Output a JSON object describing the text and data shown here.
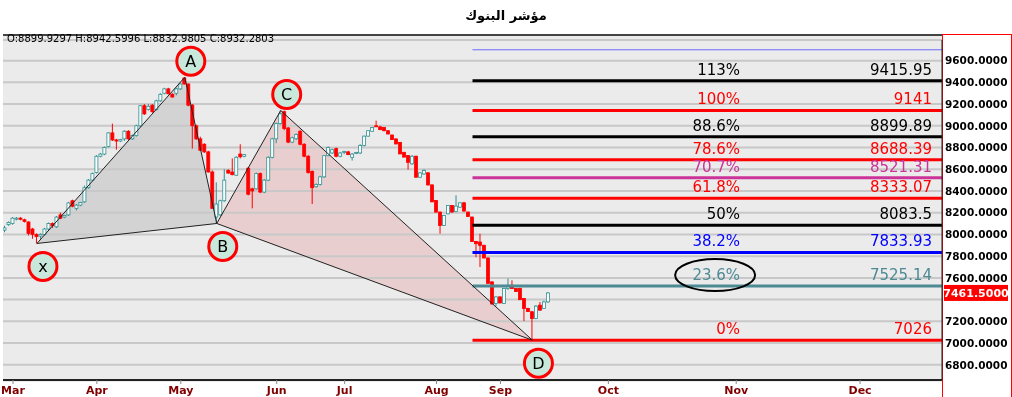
{
  "chart_data": {
    "type": "candlestick",
    "title": "مؤشر البنوك",
    "categories": [
      null,
      null,
      "Mar",
      null,
      null,
      null,
      null,
      null,
      null,
      null,
      null,
      null,
      null,
      null,
      null,
      null,
      null,
      null,
      null,
      null,
      null,
      null,
      null,
      "Apr",
      null,
      null,
      null,
      null,
      null,
      null,
      null,
      null,
      null,
      null,
      null,
      null,
      null,
      null,
      null,
      null,
      null,
      null,
      null,
      null,
      "May",
      null,
      null,
      null,
      null,
      null,
      null,
      null,
      null,
      null,
      null,
      null,
      null,
      null,
      null,
      null,
      null,
      null,
      null,
      null,
      null,
      null,
      null,
      null,
      "Jun",
      null,
      null,
      null,
      null,
      null,
      null,
      null,
      null,
      null,
      null,
      null,
      null,
      null,
      null,
      null,
      null,
      "Jul",
      null,
      null,
      null,
      null,
      null,
      null,
      null,
      null,
      null,
      null,
      null,
      null,
      null,
      null,
      null,
      null,
      null,
      null,
      null,
      null,
      null,
      null,
      "Aug",
      null,
      null,
      null,
      null,
      null,
      null,
      null,
      null,
      null,
      null,
      null,
      null,
      null,
      null,
      null,
      "Sep",
      null,
      null,
      null,
      null,
      null,
      null,
      null,
      null,
      null,
      null,
      null,
      null,
      null,
      null,
      null,
      null,
      null,
      null,
      null,
      null,
      null,
      null,
      null,
      null,
      null,
      null,
      "Oct",
      null,
      null,
      null,
      null,
      null,
      null,
      null,
      null,
      null,
      null,
      null,
      null,
      null,
      null,
      null,
      null,
      null,
      null,
      null,
      null,
      null,
      null,
      null,
      null,
      null,
      null,
      null,
      null,
      null,
      null,
      null,
      "Nov",
      null,
      null,
      null,
      null,
      null,
      null,
      null,
      null,
      null,
      null,
      null,
      null,
      null,
      null,
      null,
      null,
      null,
      null,
      null,
      null,
      null,
      null,
      null,
      null,
      null,
      null,
      null,
      null,
      null,
      null,
      "Dec",
      null,
      null,
      null,
      null,
      null,
      null,
      null,
      null,
      null,
      null,
      null,
      null,
      null,
      null,
      null,
      null,
      null,
      null,
      null,
      null
    ],
    "ohlc": [
      [
        8040,
        8080,
        8020,
        8060
      ],
      [
        8090,
        8120,
        8080,
        8110
      ],
      [
        8100,
        8160,
        8090,
        8150
      ],
      [
        8140,
        8160,
        8130,
        8150
      ],
      [
        8150,
        8160,
        8130,
        8140
      ],
      [
        8135,
        8145,
        8110,
        8120
      ],
      [
        8115,
        8120,
        7990,
        8010
      ],
      [
        8050,
        8060,
        7960,
        8000
      ],
      [
        8000,
        8010,
        7917,
        7980
      ],
      [
        7985,
        8010,
        7960,
        8000
      ],
      [
        8000,
        8060,
        7990,
        8050
      ],
      [
        8050,
        8110,
        8040,
        8100
      ],
      [
        8100,
        8110,
        8060,
        8080
      ],
      [
        8070,
        8170,
        8060,
        8160
      ],
      [
        8180,
        8200,
        8140,
        8150
      ],
      [
        8160,
        8180,
        8150,
        8175
      ],
      [
        8180,
        8300,
        8170,
        8290
      ],
      [
        8310,
        8320,
        8250,
        8260
      ],
      [
        8240,
        8280,
        8220,
        8270
      ],
      [
        8270,
        8300,
        8260,
        8295
      ],
      [
        8300,
        8450,
        8290,
        8430
      ],
      [
        8430,
        8510,
        8420,
        8500
      ],
      [
        8500,
        8570,
        8490,
        8560
      ],
      [
        8570,
        8730,
        8560,
        8720
      ],
      [
        8720,
        8750,
        8710,
        8740
      ],
      [
        8740,
        8810,
        8730,
        8800
      ],
      [
        8810,
        8940,
        8800,
        8935
      ],
      [
        8935,
        9020,
        8860,
        8870
      ],
      [
        8870,
        8880,
        8780,
        8860
      ],
      [
        8860,
        8880,
        8850,
        8875
      ],
      [
        8880,
        8960,
        8860,
        8950
      ],
      [
        8950,
        8960,
        8870,
        8880
      ],
      [
        8880,
        8920,
        8870,
        8910
      ],
      [
        8910,
        9010,
        8900,
        9000
      ],
      [
        9000,
        9190,
        8990,
        9185
      ],
      [
        9185,
        9200,
        9100,
        9110
      ],
      [
        9150,
        9200,
        9140,
        9180
      ],
      [
        9190,
        9200,
        9120,
        9130
      ],
      [
        9150,
        9240,
        9140,
        9230
      ],
      [
        9230,
        9300,
        9220,
        9290
      ],
      [
        9300,
        9350,
        9290,
        9340
      ],
      [
        9340,
        9350,
        9290,
        9295
      ],
      [
        9290,
        9300,
        9260,
        9265
      ],
      [
        9300,
        9350,
        9280,
        9340
      ],
      [
        9340,
        9390,
        9330,
        9385
      ],
      [
        9440,
        9447,
        9380,
        9385
      ],
      [
        9385,
        9390,
        9180,
        9190
      ],
      [
        9190,
        9200,
        8790,
        9000
      ],
      [
        9000,
        9010,
        8870,
        8880
      ],
      [
        8880,
        8900,
        8770,
        8775
      ],
      [
        8830,
        8840,
        8750,
        8760
      ],
      [
        8760,
        8770,
        8570,
        8575
      ],
      [
        8575,
        8590,
        8240,
        8240
      ],
      [
        8160,
        8480,
        8101,
        8280
      ],
      [
        8180,
        8320,
        8170,
        8310
      ],
      [
        8310,
        8600,
        8300,
        8500
      ],
      [
        8590,
        8600,
        8560,
        8565
      ],
      [
        8575,
        8700,
        8545,
        8550
      ],
      [
        8545,
        8720,
        8540,
        8710
      ],
      [
        8740,
        8830,
        8700,
        8715
      ],
      [
        8720,
        8740,
        8710,
        8735
      ],
      [
        8610,
        8620,
        8360,
        8370
      ],
      [
        8420,
        8430,
        8240,
        8400
      ],
      [
        8420,
        8570,
        8410,
        8560
      ],
      [
        8560,
        8570,
        8380,
        8390
      ],
      [
        8390,
        8510,
        8380,
        8500
      ],
      [
        8500,
        8720,
        8490,
        8710
      ],
      [
        8710,
        8890,
        8700,
        8880
      ],
      [
        8880,
        9030,
        8840,
        9020
      ],
      [
        9020,
        9141,
        9010,
        9110
      ],
      [
        9130,
        9141,
        8960,
        8975
      ],
      [
        8980,
        8990,
        8840,
        8850
      ],
      [
        8850,
        8900,
        8840,
        8890
      ],
      [
        8880,
        8930,
        8870,
        8920
      ],
      [
        8950,
        8960,
        8820,
        8830
      ],
      [
        8830,
        8840,
        8710,
        8720
      ],
      [
        8720,
        8730,
        8560,
        8570
      ],
      [
        8580,
        8590,
        8280,
        8430
      ],
      [
        8440,
        8470,
        8430,
        8460
      ],
      [
        8460,
        8540,
        8450,
        8530
      ],
      [
        8530,
        8730,
        8520,
        8725
      ],
      [
        8725,
        8810,
        8720,
        8800
      ],
      [
        8750,
        8790,
        8740,
        8780
      ],
      [
        8790,
        8800,
        8710,
        8720
      ],
      [
        8720,
        8760,
        8710,
        8750
      ],
      [
        8760,
        8770,
        8740,
        8765
      ],
      [
        8760,
        8770,
        8730,
        8735
      ],
      [
        8710,
        8750,
        8680,
        8740
      ],
      [
        8745,
        8760,
        8740,
        8755
      ],
      [
        8750,
        8830,
        8740,
        8820
      ],
      [
        8820,
        8910,
        8810,
        8905
      ],
      [
        8905,
        8960,
        8900,
        8955
      ],
      [
        8950,
        8990,
        8945,
        8985
      ],
      [
        9000,
        9047,
        8990,
        8995
      ],
      [
        8990,
        9000,
        8960,
        8965
      ],
      [
        8985,
        8990,
        8950,
        8955
      ],
      [
        8955,
        8960,
        8920,
        8925
      ],
      [
        8915,
        8920,
        8870,
        8873
      ],
      [
        8879,
        8885,
        8830,
        8833
      ],
      [
        8848,
        8850,
        8740,
        8741
      ],
      [
        8756,
        8760,
        8710,
        8712
      ],
      [
        8726,
        8730,
        8597,
        8664
      ],
      [
        8650,
        8730,
        8640,
        8720
      ],
      [
        8720,
        8725,
        8520,
        8527
      ],
      [
        8527,
        8575,
        8520,
        8567
      ],
      [
        8557,
        8600,
        8550,
        8588
      ],
      [
        8567,
        8575,
        8450,
        8456
      ],
      [
        8456,
        8460,
        8297,
        8300
      ],
      [
        8313,
        8315,
        8200,
        8206
      ],
      [
        8206,
        8210,
        8007,
        8083
      ],
      [
        8083,
        8180,
        8080,
        8175
      ],
      [
        8190,
        8270,
        8185,
        8267
      ],
      [
        8267,
        8270,
        8200,
        8206
      ],
      [
        8212,
        8360,
        8205,
        8261
      ],
      [
        8251,
        8295,
        8245,
        8291
      ],
      [
        8291,
        8300,
        8210,
        8215
      ],
      [
        8206,
        8210,
        8160,
        8165
      ],
      [
        8160,
        8165,
        7930,
        7935
      ],
      [
        7936,
        7940,
        7790,
        7915
      ],
      [
        7930,
        8007,
        7700,
        7900
      ],
      [
        7900,
        7905,
        7780,
        7783
      ],
      [
        7783,
        7790,
        7548,
        7550
      ],
      [
        7563,
        7570,
        7355,
        7360
      ],
      [
        7364,
        7430,
        7340,
        7425
      ],
      [
        7425,
        7430,
        7364,
        7370
      ],
      [
        7364,
        7510,
        7360,
        7502
      ],
      [
        7502,
        7594,
        7490,
        7532
      ],
      [
        7532,
        7578,
        7500,
        7502
      ],
      [
        7502,
        7505,
        7471,
        7475
      ],
      [
        7502,
        7510,
        7395,
        7400
      ],
      [
        7410,
        7415,
        7202,
        7318
      ],
      [
        7318,
        7325,
        7288,
        7290
      ],
      [
        7288,
        7295,
        7026,
        7226
      ],
      [
        7226,
        7350,
        7220,
        7340
      ],
      [
        7349,
        7379,
        7300,
        7303
      ],
      [
        7320,
        7390,
        7315,
        7379
      ],
      [
        7379,
        7470,
        7370,
        7461.5
      ],
      null,
      null,
      null,
      null,
      null,
      null,
      null,
      null,
      null,
      null,
      null,
      null,
      null,
      null,
      null,
      null,
      null,
      null,
      null,
      null,
      null,
      null,
      null,
      null,
      null,
      null,
      null,
      null,
      null,
      null,
      null,
      null,
      null,
      null,
      null,
      null,
      null,
      null,
      null,
      null,
      null,
      null,
      null,
      null,
      null,
      null,
      null,
      null,
      null,
      null,
      null,
      null,
      null,
      null,
      null,
      null,
      null,
      null,
      null,
      null,
      null,
      null,
      null,
      null,
      null,
      null,
      null,
      null,
      null,
      null,
      null,
      null,
      null,
      null,
      null,
      null,
      null,
      null,
      null,
      null,
      null,
      null,
      null,
      null,
      null,
      null,
      null,
      null,
      null,
      null,
      null,
      null,
      null,
      null,
      null,
      null,
      null,
      null
    ],
    "ylim": [
      6660,
      9790
    ],
    "yticks": [
      {
        "value": 6800,
        "label": "6800.0000"
      },
      {
        "value": 7000,
        "label": "7000.0000"
      },
      {
        "value": 7200,
        "label": "7200.0000"
      },
      {
        "value": 7400,
        "label": null
      },
      {
        "value": 7600,
        "label": "7600.0000"
      },
      {
        "value": 7800,
        "label": "7800.0000"
      },
      {
        "value": 8000,
        "label": "8000.0000"
      },
      {
        "value": 8200,
        "label": "8200.0000"
      },
      {
        "value": 8400,
        "label": "8400.0000"
      },
      {
        "value": 8600,
        "label": "8600.0000"
      },
      {
        "value": 8800,
        "label": "8800.0000"
      },
      {
        "value": 9000,
        "label": "9000.0000"
      },
      {
        "value": 9200,
        "label": "9200.0000"
      },
      {
        "value": 9400,
        "label": "9400.0000"
      },
      {
        "value": 9600,
        "label": "9600.0000"
      }
    ],
    "grid": "y",
    "ref_lines": [
      {
        "axis": "y",
        "value": 9700,
        "color": "#6b6bff"
      },
      {
        "axis": "y",
        "value": 9415.95,
        "label": "9415.95",
        "color": "#000000"
      },
      {
        "axis": "y",
        "value": 9141,
        "label": "9141",
        "color": "#ff0000"
      },
      {
        "axis": "y",
        "value": 8899.89,
        "label": "8899.89",
        "color": "#000000"
      },
      {
        "axis": "y",
        "value": 8688.39,
        "label": "8688.39",
        "color": "#ff0000"
      },
      {
        "axis": "y",
        "value": 8521.31,
        "label": "8521.31",
        "color": "#cc3399"
      },
      {
        "axis": "y",
        "value": 8333.07,
        "label": "8333.07",
        "color": "#ff0000"
      },
      {
        "axis": "y",
        "value": 8083.5,
        "label": "8083.5",
        "color": "#000000"
      },
      {
        "axis": "y",
        "value": 7833.93,
        "label": "7833.93",
        "color": "#0000ff"
      },
      {
        "axis": "y",
        "value": 7525.14,
        "label": "7525.14",
        "color": "#4d8a94"
      },
      {
        "axis": "y",
        "value": 7026,
        "label": "7026",
        "color": "#ff0000"
      }
    ],
    "annotations": [
      "O:8899.9297 H:8942.5996 L:8832.9805 C:8932.2803",
      "113%",
      "100%",
      "88.6%",
      "78.6%",
      "70.7%",
      "61.8%",
      "50%",
      "38.2%",
      "23.6%",
      "0%",
      "7461.5000",
      "x",
      "A",
      "B",
      "C",
      "D"
    ],
    "series": [
      {
        "type": "line",
        "color": "#222222",
        "values": [
          null,
          null,
          null,
          null,
          null,
          null,
          null,
          null,
          7917,
          null,
          null,
          null,
          null,
          null,
          null,
          null,
          null,
          null,
          null,
          null,
          null,
          null,
          null,
          null,
          null,
          null,
          null,
          null,
          null,
          null,
          null,
          null,
          null,
          null,
          null,
          null,
          null,
          null,
          null,
          null,
          null,
          null,
          null,
          null,
          null,
          9447,
          null,
          null,
          null,
          null,
          null,
          null,
          null,
          8101,
          null,
          null,
          null,
          null,
          null,
          null,
          null,
          null,
          null,
          null,
          null,
          null,
          null,
          null,
          null,
          9141,
          null,
          null,
          null,
          null,
          null,
          null,
          null,
          null,
          null,
          null,
          null,
          null,
          null,
          null,
          null,
          null,
          null,
          null,
          null,
          null,
          null,
          null,
          null,
          null,
          null,
          null,
          null,
          null,
          null,
          null,
          null,
          null,
          null,
          null,
          null,
          null,
          null,
          null,
          null,
          null,
          null,
          null,
          null,
          null,
          null,
          null,
          null,
          null,
          null,
          null,
          null,
          null,
          null,
          null,
          null,
          null,
          null,
          null,
          null,
          null,
          null,
          null,
          7026,
          null,
          null,
          null,
          null,
          null,
          null,
          null,
          null,
          null,
          null,
          null,
          null,
          null,
          null,
          null,
          null,
          null,
          null,
          null,
          null,
          null,
          null,
          null,
          null,
          null,
          null,
          null,
          null,
          null,
          null,
          null,
          null,
          null,
          null,
          null,
          null,
          null,
          null,
          null,
          null,
          null,
          null,
          null,
          null,
          null,
          null,
          null,
          null,
          null,
          null,
          null,
          null,
          null,
          null,
          null,
          null,
          null,
          null,
          null,
          null,
          null,
          null,
          null,
          null,
          null,
          null,
          null,
          null,
          null,
          null,
          null,
          null,
          null,
          null,
          null,
          null,
          null,
          null,
          null,
          null,
          null,
          null,
          null,
          null,
          null,
          null,
          null,
          null,
          null,
          null,
          null,
          null,
          null,
          null,
          null,
          null,
          null,
          null,
          null,
          null,
          null,
          null
        ]
      },
      {
        "type": "line",
        "color": "#222222",
        "values": [
          null,
          null,
          null,
          null,
          null,
          null,
          null,
          null,
          7917,
          null,
          null,
          null,
          null,
          null,
          null,
          null,
          null,
          null,
          null,
          null,
          null,
          null,
          null,
          null,
          null,
          null,
          null,
          null,
          null,
          null,
          null,
          null,
          null,
          null,
          null,
          null,
          null,
          null,
          null,
          null,
          null,
          null,
          null,
          null,
          null,
          null,
          null,
          null,
          null,
          null,
          null,
          null,
          null,
          8101,
          null,
          null,
          null,
          null,
          null,
          null,
          null,
          null,
          null,
          null,
          null,
          null,
          null,
          null,
          null,
          null,
          null,
          null,
          null,
          null,
          null,
          null,
          null,
          null,
          null,
          null,
          null,
          null,
          null,
          null,
          null,
          null,
          null,
          null,
          null,
          null,
          null,
          null,
          null,
          null,
          null,
          null,
          null,
          null,
          null,
          null,
          null,
          null,
          null,
          null,
          null,
          null,
          null,
          null,
          null,
          null,
          null,
          null,
          null,
          null,
          null,
          null,
          null,
          null,
          null,
          null,
          null,
          null,
          null,
          null,
          null,
          null,
          null,
          null,
          null,
          null,
          null,
          null,
          7026,
          null,
          null,
          null,
          null,
          null,
          null,
          null,
          null,
          null,
          null,
          null,
          null,
          null,
          null,
          null,
          null,
          null,
          null,
          null,
          null,
          null,
          null,
          null,
          null,
          null,
          null,
          null,
          null,
          null,
          null,
          null,
          null,
          null,
          null,
          null,
          null,
          null,
          null,
          null,
          null,
          null,
          null,
          null,
          null,
          null,
          null,
          null,
          null,
          null,
          null,
          null,
          null,
          null,
          null,
          null,
          null,
          null,
          null,
          null,
          null,
          null,
          null,
          null,
          null,
          null,
          null,
          null,
          null,
          null,
          null,
          null,
          null,
          null,
          null,
          null,
          null,
          null,
          null,
          null,
          null,
          null,
          null,
          null,
          null,
          null,
          null,
          null,
          null,
          null,
          null,
          null,
          null,
          null,
          null,
          null,
          null,
          null,
          null,
          null,
          null,
          null,
          null
        ]
      }
    ]
  }
}
